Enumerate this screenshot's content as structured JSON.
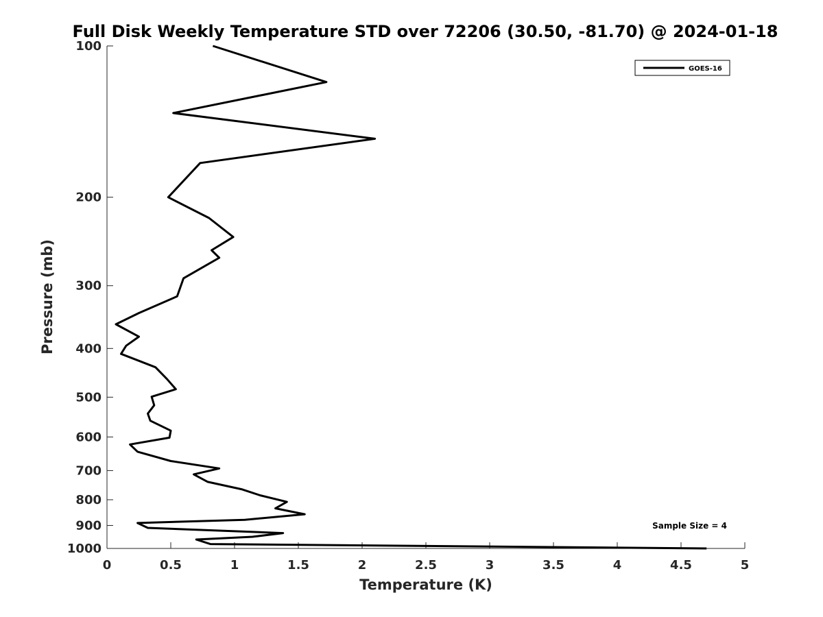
{
  "chart_data": {
    "type": "line",
    "title": "Full Disk Weekly Temperature STD over 72206 (30.50, -81.70) @ 2024-01-18",
    "xlabel": "Temperature (K)",
    "ylabel": "Pressure (mb)",
    "xlim": [
      0,
      5
    ],
    "ylim": [
      100,
      1000
    ],
    "y_scale": "log",
    "y_reversed": true,
    "xticks": [
      0,
      0.5,
      1,
      1.5,
      2,
      2.5,
      3,
      3.5,
      4,
      4.5,
      5
    ],
    "xtick_labels": [
      "0",
      "0.5",
      "1",
      "1.5",
      "2",
      "2.5",
      "3",
      "3.5",
      "4",
      "4.5",
      "5"
    ],
    "yticks": [
      100,
      200,
      300,
      400,
      500,
      600,
      700,
      800,
      900,
      1000
    ],
    "ytick_labels": [
      "100",
      "200",
      "300",
      "400",
      "500",
      "600",
      "700",
      "800",
      "900",
      "1000"
    ],
    "grid": false,
    "legend": {
      "position": "top-right",
      "entries": [
        "GOES-16"
      ]
    },
    "annotations": [
      {
        "text": "Sample Size = 4",
        "position": "bottom-right"
      }
    ],
    "series": [
      {
        "name": "GOES-16",
        "color": "#000000",
        "x": [
          0.83,
          1.72,
          0.52,
          2.1,
          0.73,
          0.48,
          0.8,
          0.99,
          0.82,
          0.88,
          0.6,
          0.55,
          0.25,
          0.07,
          0.25,
          0.15,
          0.11,
          0.38,
          0.47,
          0.54,
          0.35,
          0.37,
          0.32,
          0.34,
          0.5,
          0.49,
          0.18,
          0.24,
          0.5,
          0.88,
          0.68,
          0.79,
          1.06,
          1.2,
          1.41,
          1.32,
          1.55,
          1.08,
          0.24,
          0.32,
          1.38,
          1.14,
          0.7,
          0.81,
          4.7
        ],
        "y": [
          100,
          118,
          136,
          153,
          171,
          200,
          220,
          240,
          255,
          264,
          290,
          315,
          340,
          358,
          379,
          395,
          410,
          436,
          460,
          482,
          499,
          519,
          539,
          557,
          583,
          602,
          621,
          642,
          670,
          693,
          712,
          737,
          763,
          784,
          808,
          832,
          855,
          877,
          890,
          910,
          932,
          948,
          960,
          980,
          1000
        ]
      }
    ]
  }
}
